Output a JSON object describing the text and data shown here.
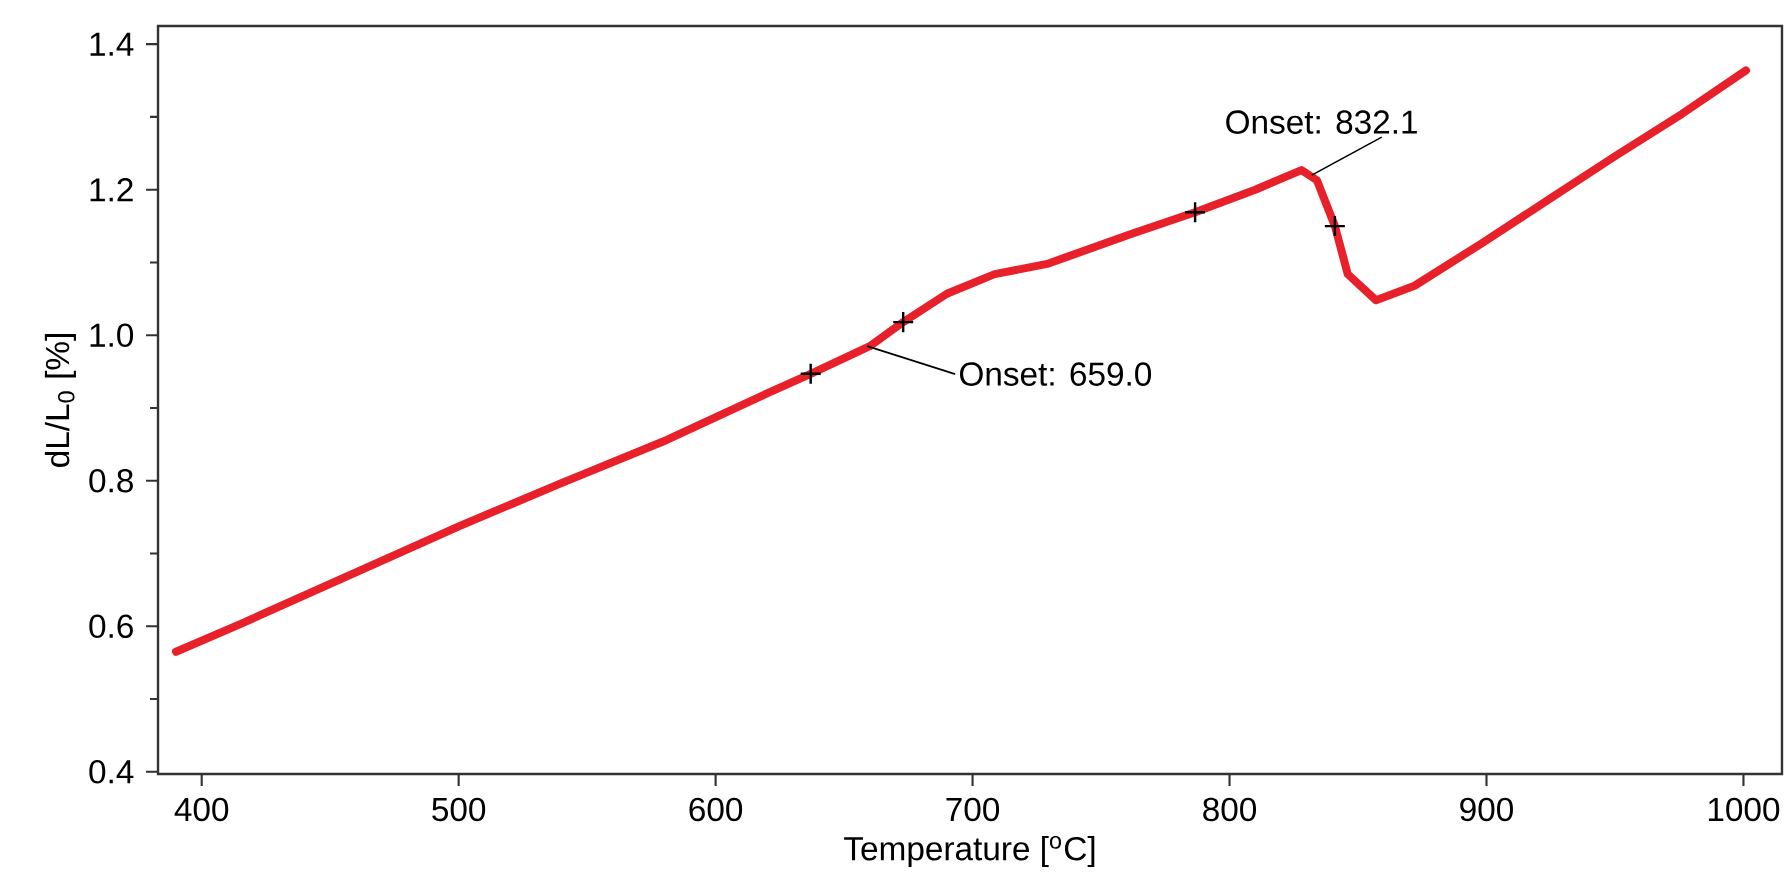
{
  "chart_data": {
    "type": "line",
    "xlabel": "Temperature [$^{o}$C]",
    "ylabel": "dL/L$_{0}$ [%]",
    "xlim": [
      383,
      1015
    ],
    "ylim": [
      0.397,
      1.425
    ],
    "xticks": [
      400,
      500,
      600,
      700,
      800,
      900,
      1000
    ],
    "yticks": [
      0.4,
      0.6,
      0.8,
      {
        "value": 1.0,
        "label": "1.0"
      },
      1.2,
      1.4
    ],
    "series": [
      {
        "color": "#e8202a",
        "marker": "none",
        "line_style": "solid",
        "x": [
          390,
          415,
          500.5,
          539.5,
          581,
          620,
          637,
          660,
          673,
          690,
          708.6,
          729,
          761.7,
          786.6,
          810,
          828,
          834,
          841,
          846,
          857,
          872,
          898,
          924,
          950,
          976,
          1001
        ],
        "values": [
          0.565,
          0.603,
          0.738,
          0.796,
          0.856,
          0.92,
          0.947,
          0.985,
          1.018,
          1.057,
          1.084,
          1.098,
          1.139,
          1.169,
          1.2,
          1.227,
          1.213,
          1.15,
          1.084,
          1.048,
          1.068,
          1.126,
          1.186,
          1.246,
          1.304,
          1.364
        ]
      },
      {
        "type": "scatter",
        "color": "#000000",
        "marker": "cross",
        "x": [
          637,
          673,
          786.6,
          841
        ],
        "values": [
          0.947,
          1.018,
          1.169,
          1.15
        ]
      }
    ],
    "annotations": [
      {
        "text": "Onset: 659.0",
        "x": 659,
        "y": 0.985
      },
      {
        "text": "Onset: 832.1",
        "x": 832,
        "y": 1.22
      }
    ]
  }
}
